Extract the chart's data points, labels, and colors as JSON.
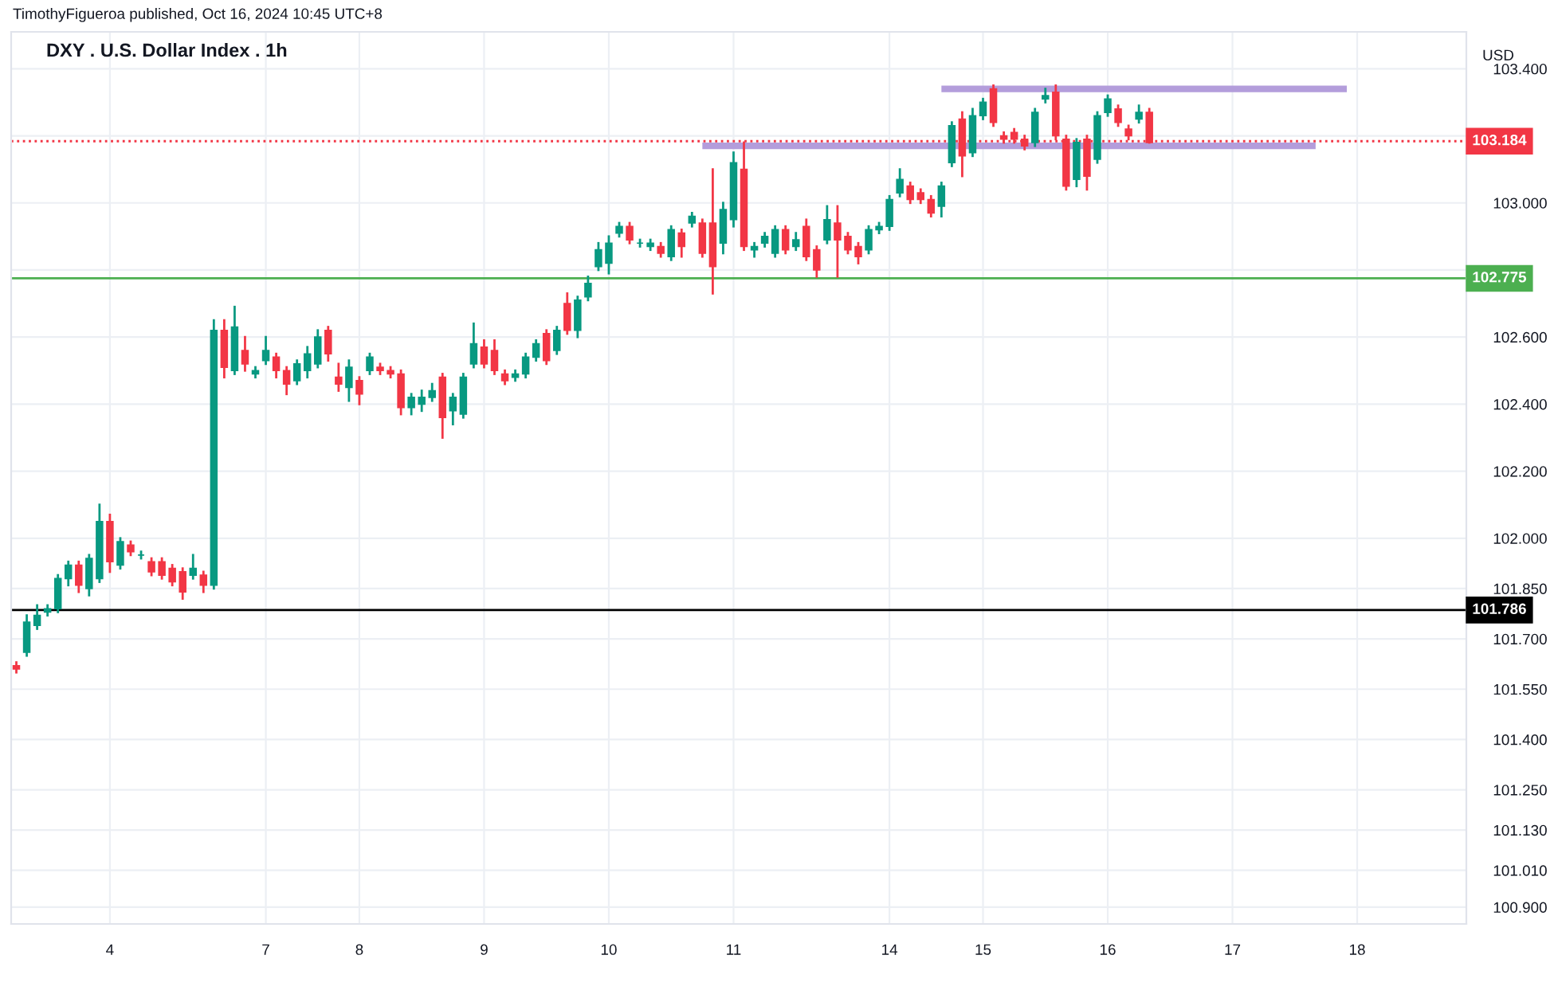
{
  "chart_data": {
    "type": "candlestick",
    "title": "DXY . U.S. Dollar Index . 1h",
    "ylabel": "USD",
    "annotations": [
      "TimothyFigueroa published, Oct 16, 2024 10:45 UTC+8"
    ],
    "categories": [
      null,
      null,
      null,
      null,
      null,
      null,
      null,
      null,
      null,
      "4",
      null,
      null,
      null,
      null,
      null,
      null,
      null,
      null,
      null,
      null,
      null,
      null,
      null,
      null,
      "7",
      null,
      null,
      null,
      null,
      null,
      null,
      null,
      null,
      "8",
      null,
      null,
      null,
      null,
      null,
      null,
      null,
      null,
      null,
      null,
      null,
      "9",
      null,
      null,
      null,
      null,
      null,
      null,
      null,
      null,
      null,
      null,
      null,
      "10",
      null,
      null,
      null,
      null,
      null,
      null,
      null,
      null,
      null,
      null,
      null,
      "11",
      null,
      null,
      null,
      null,
      null,
      null,
      null,
      null,
      null,
      null,
      null,
      null,
      null,
      null,
      "14",
      null,
      null,
      null,
      null,
      null,
      null,
      null,
      null,
      "15",
      null,
      null,
      null,
      null,
      null,
      null,
      null,
      null,
      null,
      null,
      null,
      "16",
      null,
      null,
      null,
      null,
      null,
      null,
      null,
      null,
      null,
      null,
      null,
      "17",
      null,
      null,
      null,
      null,
      null,
      null,
      null,
      null,
      null,
      null,
      null,
      "18",
      null,
      null,
      null,
      null,
      null,
      null,
      null,
      null,
      null,
      null
    ],
    "ohlc": [
      [
        101.62,
        101.63,
        101.6,
        101.61
      ],
      [
        101.66,
        101.77,
        101.65,
        101.75
      ],
      [
        101.74,
        101.8,
        101.73,
        101.77
      ],
      [
        101.78,
        101.8,
        101.77,
        101.79
      ],
      [
        101.79,
        101.89,
        101.78,
        101.88
      ],
      [
        101.88,
        101.93,
        101.86,
        101.92
      ],
      [
        101.92,
        101.93,
        101.84,
        101.86
      ],
      [
        101.85,
        101.95,
        101.83,
        101.94
      ],
      [
        101.88,
        102.1,
        101.87,
        102.05
      ],
      [
        102.05,
        102.07,
        101.9,
        101.93
      ],
      [
        101.92,
        102.0,
        101.91,
        101.99
      ],
      [
        101.98,
        101.99,
        101.95,
        101.96
      ],
      [
        101.95,
        101.96,
        101.94,
        101.95
      ],
      [
        101.93,
        101.94,
        101.89,
        101.9
      ],
      [
        101.93,
        101.94,
        101.88,
        101.89
      ],
      [
        101.91,
        101.92,
        101.86,
        101.87
      ],
      [
        101.9,
        101.91,
        101.82,
        101.84
      ],
      [
        101.89,
        101.95,
        101.88,
        101.91
      ],
      [
        101.89,
        101.9,
        101.84,
        101.86
      ],
      [
        101.86,
        102.65,
        101.85,
        102.62
      ],
      [
        102.62,
        102.65,
        102.48,
        102.51
      ],
      [
        102.5,
        102.69,
        102.49,
        102.63
      ],
      [
        102.56,
        102.6,
        102.5,
        102.52
      ],
      [
        102.49,
        102.51,
        102.48,
        102.5
      ],
      [
        102.53,
        102.6,
        102.52,
        102.56
      ],
      [
        102.54,
        102.55,
        102.48,
        102.5
      ],
      [
        102.5,
        102.51,
        102.43,
        102.46
      ],
      [
        102.47,
        102.53,
        102.46,
        102.52
      ],
      [
        102.5,
        102.57,
        102.48,
        102.55
      ],
      [
        102.52,
        102.62,
        102.51,
        102.6
      ],
      [
        102.62,
        102.63,
        102.53,
        102.55
      ],
      [
        102.48,
        102.52,
        102.44,
        102.46
      ],
      [
        102.45,
        102.53,
        102.41,
        102.51
      ],
      [
        102.47,
        102.48,
        102.4,
        102.43
      ],
      [
        102.5,
        102.55,
        102.49,
        102.54
      ],
      [
        102.51,
        102.52,
        102.49,
        102.5
      ],
      [
        102.5,
        102.51,
        102.48,
        102.49
      ],
      [
        102.49,
        102.5,
        102.37,
        102.39
      ],
      [
        102.39,
        102.43,
        102.37,
        102.42
      ],
      [
        102.4,
        102.44,
        102.38,
        102.42
      ],
      [
        102.42,
        102.46,
        102.41,
        102.44
      ],
      [
        102.48,
        102.49,
        102.3,
        102.36
      ],
      [
        102.38,
        102.43,
        102.34,
        102.42
      ],
      [
        102.37,
        102.49,
        102.36,
        102.48
      ],
      [
        102.52,
        102.64,
        102.51,
        102.58
      ],
      [
        102.57,
        102.59,
        102.51,
        102.52
      ],
      [
        102.56,
        102.59,
        102.49,
        102.5
      ],
      [
        102.49,
        102.5,
        102.46,
        102.47
      ],
      [
        102.48,
        102.5,
        102.47,
        102.49
      ],
      [
        102.49,
        102.55,
        102.48,
        102.54
      ],
      [
        102.54,
        102.59,
        102.53,
        102.58
      ],
      [
        102.61,
        102.62,
        102.52,
        102.53
      ],
      [
        102.56,
        102.63,
        102.55,
        102.62
      ],
      [
        102.7,
        102.73,
        102.61,
        102.62
      ],
      [
        102.62,
        102.72,
        102.6,
        102.71
      ],
      [
        102.72,
        102.78,
        102.71,
        102.76
      ],
      [
        102.81,
        102.88,
        102.8,
        102.86
      ],
      [
        102.82,
        102.9,
        102.79,
        102.88
      ],
      [
        102.91,
        102.94,
        102.9,
        102.93
      ],
      [
        102.93,
        102.94,
        102.88,
        102.89
      ],
      [
        102.88,
        102.89,
        102.87,
        102.88
      ],
      [
        102.87,
        102.89,
        102.86,
        102.88
      ],
      [
        102.87,
        102.88,
        102.84,
        102.85
      ],
      [
        102.84,
        102.93,
        102.83,
        102.92
      ],
      [
        102.91,
        102.92,
        102.84,
        102.87
      ],
      [
        102.94,
        102.97,
        102.93,
        102.96
      ],
      [
        102.94,
        102.95,
        102.84,
        102.85
      ],
      [
        102.94,
        103.1,
        102.73,
        102.81
      ],
      [
        102.88,
        103.0,
        102.85,
        102.98
      ],
      [
        102.95,
        103.15,
        102.93,
        103.12
      ],
      [
        103.1,
        103.18,
        102.86,
        102.87
      ],
      [
        102.86,
        102.88,
        102.84,
        102.87
      ],
      [
        102.88,
        102.91,
        102.87,
        102.9
      ],
      [
        102.85,
        102.93,
        102.84,
        102.92
      ],
      [
        102.92,
        102.93,
        102.85,
        102.86
      ],
      [
        102.87,
        102.91,
        102.86,
        102.89
      ],
      [
        102.93,
        102.95,
        102.83,
        102.84
      ],
      [
        102.86,
        102.87,
        102.78,
        102.8
      ],
      [
        102.89,
        102.99,
        102.88,
        102.95
      ],
      [
        102.94,
        102.99,
        102.78,
        102.89
      ],
      [
        102.9,
        102.91,
        102.85,
        102.86
      ],
      [
        102.87,
        102.88,
        102.82,
        102.84
      ],
      [
        102.86,
        102.93,
        102.85,
        102.92
      ],
      [
        102.92,
        102.94,
        102.91,
        102.93
      ],
      [
        102.93,
        103.02,
        102.92,
        103.01
      ],
      [
        103.03,
        103.1,
        103.02,
        103.07
      ],
      [
        103.05,
        103.06,
        103.0,
        103.01
      ],
      [
        103.03,
        103.04,
        103.0,
        103.01
      ],
      [
        103.01,
        103.02,
        102.96,
        102.97
      ],
      [
        102.99,
        103.06,
        102.96,
        103.05
      ],
      [
        103.12,
        103.24,
        103.11,
        103.23
      ],
      [
        103.25,
        103.27,
        103.08,
        103.14
      ],
      [
        103.15,
        103.28,
        103.14,
        103.26
      ],
      [
        103.26,
        103.31,
        103.25,
        103.3
      ],
      [
        103.34,
        103.35,
        103.23,
        103.24
      ],
      [
        103.2,
        103.21,
        103.18,
        103.19
      ],
      [
        103.21,
        103.22,
        103.18,
        103.19
      ],
      [
        103.19,
        103.2,
        103.16,
        103.17
      ],
      [
        103.18,
        103.28,
        103.17,
        103.27
      ],
      [
        103.31,
        103.34,
        103.3,
        103.32
      ],
      [
        103.33,
        103.35,
        103.19,
        103.2
      ],
      [
        103.19,
        103.2,
        103.04,
        103.05
      ],
      [
        103.07,
        103.19,
        103.05,
        103.18
      ],
      [
        103.19,
        103.2,
        103.04,
        103.08
      ],
      [
        103.13,
        103.27,
        103.12,
        103.26
      ],
      [
        103.27,
        103.32,
        103.26,
        103.31
      ],
      [
        103.28,
        103.29,
        103.23,
        103.24
      ],
      [
        103.22,
        103.23,
        103.19,
        103.2
      ],
      [
        103.25,
        103.29,
        103.24,
        103.27
      ],
      [
        103.27,
        103.28,
        103.18,
        103.18
      ],
      null,
      null,
      null,
      null,
      null,
      null,
      null,
      null,
      null,
      null,
      null,
      null,
      null,
      null,
      null,
      null,
      null,
      null,
      null,
      null,
      null,
      null,
      null,
      null,
      null,
      null,
      null,
      null,
      null,
      null
    ],
    "colors": [
      "#f23645",
      "#089981",
      "#089981",
      "#089981",
      "#089981",
      "#089981",
      "#f23645",
      "#089981",
      "#089981",
      "#f23645",
      "#089981",
      "#f23645",
      "#089981",
      "#f23645",
      "#f23645",
      "#f23645",
      "#f23645",
      "#089981",
      "#f23645",
      "#089981",
      "#f23645",
      "#089981",
      "#f23645",
      "#089981",
      "#089981",
      "#f23645",
      "#f23645",
      "#089981",
      "#089981",
      "#089981",
      "#f23645",
      "#f23645",
      "#089981",
      "#f23645",
      "#089981",
      "#f23645",
      "#f23645",
      "#f23645",
      "#089981",
      "#089981",
      "#089981",
      "#f23645",
      "#089981",
      "#089981",
      "#089981",
      "#f23645",
      "#f23645",
      "#f23645",
      "#089981",
      "#089981",
      "#089981",
      "#f23645",
      "#089981",
      "#f23645",
      "#089981",
      "#089981",
      "#089981",
      "#089981",
      "#089981",
      "#f23645",
      "#089981",
      "#089981",
      "#f23645",
      "#089981",
      "#f23645",
      "#089981",
      "#f23645",
      "#f23645",
      "#089981",
      "#089981",
      "#f23645",
      "#089981",
      "#089981",
      "#089981",
      "#f23645",
      "#089981",
      "#f23645",
      "#f23645",
      "#089981",
      "#f23645",
      "#f23645",
      "#f23645",
      "#089981",
      "#089981",
      "#089981",
      "#089981",
      "#f23645",
      "#f23645",
      "#f23645",
      "#089981",
      "#089981",
      "#f23645",
      "#089981",
      "#089981",
      "#f23645",
      "#f23645",
      "#f23645",
      "#f23645",
      "#089981",
      "#089981",
      "#f23645",
      "#f23645",
      "#089981",
      "#f23645",
      "#089981",
      "#089981",
      "#f23645",
      "#f23645",
      "#089981",
      "#f23645",
      null,
      null,
      null,
      null,
      null,
      null,
      null,
      null,
      null,
      null,
      null,
      null,
      null,
      null,
      null,
      null,
      null,
      null,
      null,
      null,
      null,
      null,
      null,
      null,
      null,
      null,
      null,
      null,
      null,
      null
    ],
    "series": [
      {
        "type": "line",
        "color": "#b39ddb",
        "values": [
          null,
          null,
          null,
          null,
          null,
          null,
          null,
          null,
          null,
          null,
          null,
          null,
          null,
          null,
          null,
          null,
          null,
          null,
          null,
          null,
          null,
          null,
          null,
          null,
          null,
          null,
          null,
          null,
          null,
          null,
          null,
          null,
          null,
          null,
          null,
          null,
          null,
          null,
          null,
          null,
          null,
          null,
          null,
          null,
          null,
          null,
          null,
          null,
          null,
          null,
          null,
          null,
          null,
          null,
          null,
          null,
          null,
          null,
          null,
          null,
          null,
          null,
          null,
          null,
          null,
          null,
          null,
          null,
          null,
          null,
          null,
          null,
          null,
          null,
          null,
          null,
          null,
          null,
          null,
          null,
          null,
          null,
          null,
          null,
          null,
          null,
          null,
          null,
          null,
          103.34,
          103.34,
          103.34,
          103.34,
          103.34,
          103.34,
          103.34,
          103.34,
          103.34,
          103.34,
          103.34,
          103.34,
          103.34,
          103.34,
          103.34,
          103.34,
          103.34,
          103.34,
          103.34,
          103.34,
          103.34,
          103.34,
          103.34,
          103.34,
          103.34,
          103.34,
          103.34,
          103.34,
          103.34,
          103.34,
          103.34,
          103.34,
          103.34,
          103.34,
          103.34,
          103.34,
          103.34,
          103.34,
          103.34,
          103.34,
          null,
          null,
          null,
          null,
          null,
          null,
          null,
          null,
          null,
          null,
          null
        ]
      },
      {
        "type": "line",
        "color": "#b39ddb",
        "values": [
          null,
          null,
          null,
          null,
          null,
          null,
          null,
          null,
          null,
          null,
          null,
          null,
          null,
          null,
          null,
          null,
          null,
          null,
          null,
          null,
          null,
          null,
          null,
          null,
          null,
          null,
          null,
          null,
          null,
          null,
          null,
          null,
          null,
          null,
          null,
          null,
          null,
          null,
          null,
          null,
          null,
          null,
          null,
          null,
          null,
          null,
          null,
          null,
          null,
          null,
          null,
          null,
          null,
          null,
          null,
          null,
          null,
          null,
          null,
          null,
          null,
          null,
          null,
          null,
          null,
          null,
          103.17,
          103.17,
          103.17,
          103.17,
          103.17,
          103.17,
          103.17,
          103.17,
          103.17,
          103.17,
          103.17,
          103.17,
          103.17,
          103.17,
          103.17,
          103.17,
          103.17,
          103.17,
          103.17,
          103.17,
          103.17,
          103.17,
          103.17,
          103.17,
          103.17,
          103.17,
          103.17,
          103.17,
          103.17,
          103.17,
          103.17,
          103.17,
          103.17,
          103.17,
          103.17,
          103.17,
          103.17,
          103.17,
          103.17,
          103.17,
          103.17,
          103.17,
          103.17,
          103.17,
          103.17,
          103.17,
          103.17,
          103.17,
          103.17,
          103.17,
          103.17,
          103.17,
          103.17,
          103.17,
          103.17,
          103.17,
          103.17,
          103.17,
          103.17,
          103.17,
          null,
          null,
          null,
          null,
          null,
          null,
          null,
          null,
          null,
          null,
          null,
          null,
          null,
          null
        ]
      }
    ],
    "ref_lines": [
      {
        "axis": "y",
        "value": 103.184,
        "label": "103.184",
        "color": "#f23645",
        "line_style": "dotted"
      },
      {
        "axis": "y",
        "value": 102.775,
        "label": "102.775",
        "color": "#4caf50",
        "line_style": "solid"
      },
      {
        "axis": "y",
        "value": 101.786,
        "label": "101.786",
        "color": "#000000",
        "line_style": "solid"
      }
    ],
    "ylim": [
      100.85,
      103.51
    ],
    "yticks": [
      {
        "value": 103.4,
        "label": "103.400"
      },
      {
        "value": 103.2,
        "label": null
      },
      {
        "value": 103.0,
        "label": "103.000"
      },
      {
        "value": 102.8,
        "label": null
      },
      {
        "value": 102.6,
        "label": "102.600"
      },
      {
        "value": 102.4,
        "label": "102.400"
      },
      {
        "value": 102.2,
        "label": "102.200"
      },
      {
        "value": 102.0,
        "label": "102.000"
      },
      {
        "value": 101.85,
        "label": "101.850"
      },
      {
        "value": 101.7,
        "label": "101.700"
      },
      {
        "value": 101.55,
        "label": "101.550"
      },
      {
        "value": 101.4,
        "label": "101.400"
      },
      {
        "value": 101.25,
        "label": "101.250"
      },
      {
        "value": 101.13,
        "label": "101.130"
      },
      {
        "value": 101.01,
        "label": "101.010"
      },
      {
        "value": 100.9,
        "label": "100.900"
      }
    ],
    "grid": true
  }
}
